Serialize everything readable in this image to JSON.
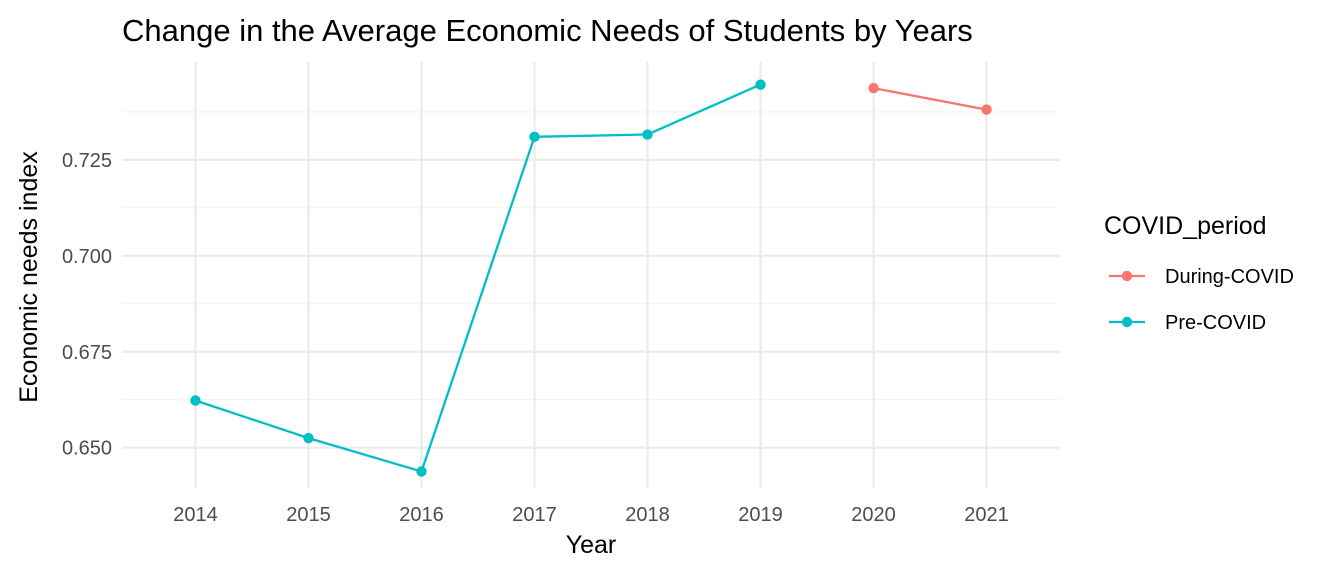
{
  "chart_data": {
    "type": "line",
    "title": "Change in the Average Economic Needs of Students by Years",
    "xlabel": "Year",
    "ylabel": "Economic needs index",
    "x_ticks": [
      "2014",
      "2015",
      "2016",
      "2017",
      "2018",
      "2019",
      "2020",
      "2021"
    ],
    "y_ticks": [
      "0.650",
      "0.675",
      "0.700",
      "0.725"
    ],
    "ylim": [
      0.6395,
      0.7505
    ],
    "grid": true,
    "legend": {
      "title": "COVID_period",
      "placement": "right"
    },
    "series": [
      {
        "name": "During-COVID",
        "color": "#F8766D",
        "points": [
          {
            "x": 2020,
            "y": 0.7437
          },
          {
            "x": 2021,
            "y": 0.7381
          }
        ]
      },
      {
        "name": "Pre-COVID",
        "color": "#00BFC4",
        "points": [
          {
            "x": 2014,
            "y": 0.6623
          },
          {
            "x": 2015,
            "y": 0.6525
          },
          {
            "x": 2016,
            "y": 0.6438
          },
          {
            "x": 2017,
            "y": 0.731
          },
          {
            "x": 2018,
            "y": 0.7316
          },
          {
            "x": 2019,
            "y": 0.7446
          }
        ]
      }
    ]
  }
}
